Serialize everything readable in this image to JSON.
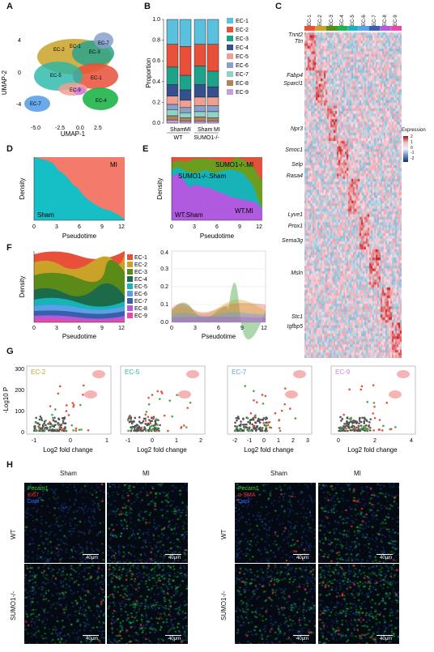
{
  "panels": [
    "A",
    "B",
    "C",
    "D",
    "E",
    "F",
    "G",
    "H"
  ],
  "A": {
    "xlabel": "UMAP-1",
    "ylabel": "UMAP-2",
    "xticks": [
      "-5.0",
      "-2.5",
      "0.0",
      "2.5"
    ],
    "yticks": [
      "4",
      "0",
      "-4"
    ],
    "clusters": [
      "EC-1",
      "EC-2",
      "EC-3",
      "EC-4",
      "EC-5",
      "EC-6",
      "EC-7",
      "EC-8",
      "EC-9"
    ]
  },
  "B": {
    "ylabel": "Proportion",
    "yticks": [
      "0.0",
      "0.2",
      "0.4",
      "0.6",
      "0.8",
      "1.0"
    ],
    "xlabels": [
      "Sham",
      "MI",
      "Sham",
      "MI"
    ],
    "groups": [
      "WT",
      "SUMO1-/-"
    ]
  },
  "legend": [
    {
      "name": "EC-1",
      "color": "#5bc0dd"
    },
    {
      "name": "EC-2",
      "color": "#e8503a"
    },
    {
      "name": "EC-3",
      "color": "#1fa28a"
    },
    {
      "name": "EC-4",
      "color": "#34508f"
    },
    {
      "name": "EC-5",
      "color": "#f0a090"
    },
    {
      "name": "EC-6",
      "color": "#8a9fc9"
    },
    {
      "name": "EC-7",
      "color": "#8fd3c8"
    },
    {
      "name": "EC-8",
      "color": "#b0845a"
    },
    {
      "name": "EC-9",
      "color": "#c79fd8"
    }
  ],
  "C": {
    "genes": [
      "Tnnt2",
      "Ttn",
      "Fabp4",
      "Sparcl1",
      "Npr3",
      "Smoc1",
      "Selp",
      "Rasa4",
      "Lyve1",
      "Prox1",
      "Sema3g",
      "Msln",
      "Stc1",
      "Igfbp5"
    ],
    "columns": [
      "EC-1",
      "EC-2",
      "EC-3",
      "EC-4",
      "EC-5",
      "EC-6",
      "EC-7",
      "EC-8",
      "EC-9"
    ],
    "expression_title": "Expression",
    "expression_ticks": [
      "2",
      "1",
      "0",
      "-1",
      "-2"
    ]
  },
  "D": {
    "xlabel": "Pseudotime",
    "ylabel": "Density",
    "xticks": [
      "0",
      "3",
      "6",
      "9",
      "12"
    ],
    "labels": [
      "MI",
      "Sham"
    ]
  },
  "E": {
    "xlabel": "Pseudotime",
    "ylabel": "Density",
    "xticks": [
      "0",
      "3",
      "6",
      "9",
      "12"
    ],
    "labels": [
      "SUMO1-/-.MI",
      "SUMO1-/-.Sham",
      "WT.Sham",
      "WT.MI"
    ]
  },
  "F": {
    "xlabel": "Pseudotime",
    "ylabel": "Density",
    "xticks": [
      "0",
      "3",
      "6",
      "9",
      "12"
    ],
    "right_yticks": [
      "0.0",
      "0.1",
      "0.2",
      "0.3",
      "0.4"
    ],
    "right_xticks": [
      "0",
      "3",
      "6",
      "9",
      "12"
    ]
  },
  "G": {
    "ylabel": "-Log10 P",
    "xlabel": "Log2 fold change",
    "plots": [
      {
        "title": "EC-2",
        "color": "#c9a227",
        "xticks": [
          "-1",
          "0",
          "1"
        ]
      },
      {
        "title": "EC-5",
        "color": "#26b6a7",
        "xticks": [
          "-1",
          "0",
          "1",
          "2"
        ]
      },
      {
        "title": "EC-7",
        "color": "#5aa0e8",
        "xticks": [
          "-2",
          "-1",
          "0",
          "1",
          "2",
          "3"
        ]
      },
      {
        "title": "EC-9",
        "color": "#d27fe0",
        "xticks": [
          "0",
          "2",
          "4"
        ]
      }
    ],
    "yticks": [
      "0",
      "100",
      "200",
      "300"
    ]
  },
  "H": {
    "col_labels": [
      "Sham",
      "MI",
      "Sham",
      "MI"
    ],
    "row_labels": [
      "WT",
      "SUMO1-/-"
    ],
    "left_channels": [
      {
        "t": "Pecam1",
        "c": "#22dd22"
      },
      {
        "t": "Ki67",
        "c": "#ff3030"
      },
      {
        "t": "Dapi",
        "c": "#3060ff"
      }
    ],
    "right_channels": [
      {
        "t": "Pecam1",
        "c": "#22dd22"
      },
      {
        "t": "α-SMA",
        "c": "#ff3030"
      },
      {
        "t": "Dapi",
        "c": "#3060ff"
      }
    ],
    "scale": "40μm"
  }
}
